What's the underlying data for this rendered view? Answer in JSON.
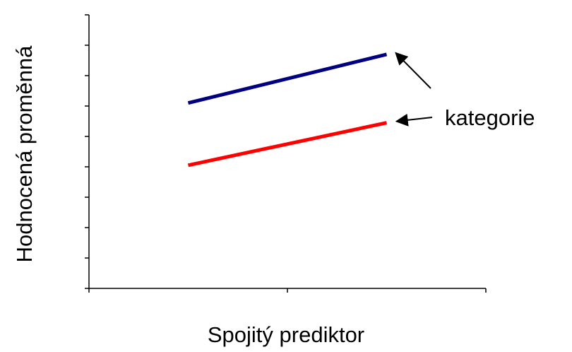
{
  "chart_data": {
    "type": "line",
    "title": "",
    "xlabel": "Spojitý prediktor",
    "ylabel": "Hodnocená proměnná",
    "xlim": [
      0,
      2
    ],
    "ylim": [
      0,
      9
    ],
    "x_tick_count": 3,
    "y_tick_count": 10,
    "grid": false,
    "tick_labels": false,
    "series": [
      {
        "color": "#000080",
        "x": [
          0.5,
          1.5
        ],
        "values": [
          6.1,
          7.7
        ]
      },
      {
        "color": "#ff0000",
        "x": [
          0.5,
          1.5
        ],
        "values": [
          4.05,
          5.45
        ]
      }
    ],
    "annotations": [
      {
        "text": "kategorie",
        "points_to": "both series line ends"
      }
    ]
  }
}
